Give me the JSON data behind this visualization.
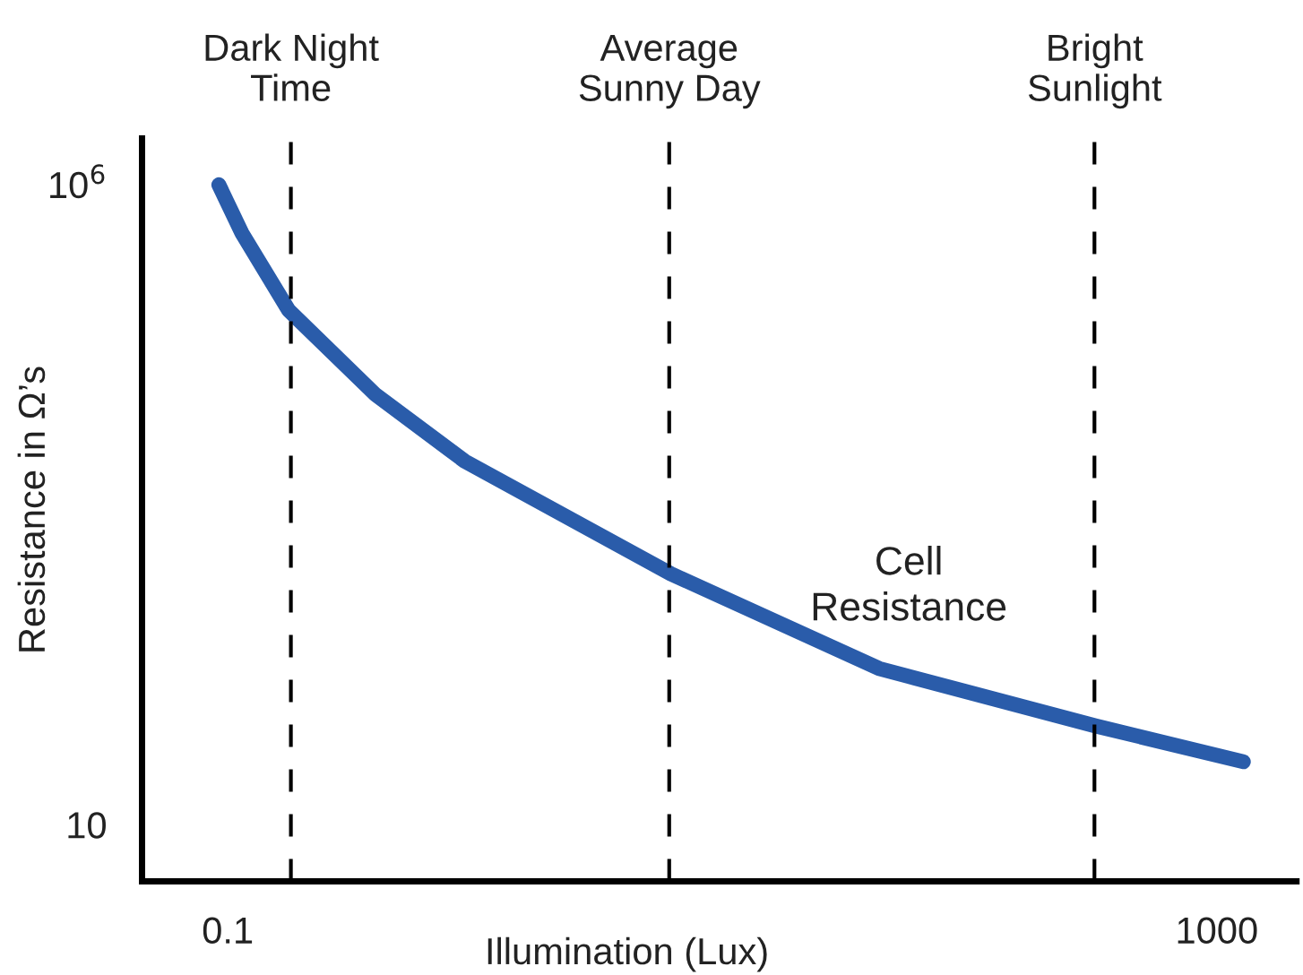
{
  "chart_data": {
    "type": "line",
    "xlabel": "Illumination (Lux)",
    "ylabel": "Resistance in Ω’s",
    "log": "xy",
    "xlim": [
      0.045,
      2100
    ],
    "ylim": [
      3.6,
      2300000
    ],
    "xticks": [
      0.1,
      1000
    ],
    "yticks": [
      10,
      {
        "value": 1000000,
        "label": "10$^{6}$"
      }
    ],
    "grid": false,
    "legend": false,
    "marker": "none",
    "line_style": "solid",
    "series": [
      {
        "color": "#2a5caa",
        "x": [
          0.092,
          0.114,
          0.176,
          0.395,
          0.91,
          6.2,
          43,
          324,
          1280
        ],
        "values": [
          1000000,
          420000,
          105000,
          23000,
          6900,
          910,
          166,
          59,
          31
        ]
      }
    ],
    "annotations": [
      {
        "text": "Cell Resistance",
        "x": 43,
        "y": 166
      }
    ],
    "ref_lines": [
      {
        "axis": "x",
        "value": 0.18,
        "label": "Dark Night\nTime",
        "color": "#000000",
        "line_style": "dashed"
      },
      {
        "axis": "x",
        "value": 6.1,
        "label": "Average\nSunny Day",
        "color": "#000000",
        "line_style": "dashed"
      },
      {
        "axis": "x",
        "value": 320,
        "label": "Bright\nSunlight",
        "color": "#000000",
        "line_style": "dashed"
      }
    ]
  }
}
